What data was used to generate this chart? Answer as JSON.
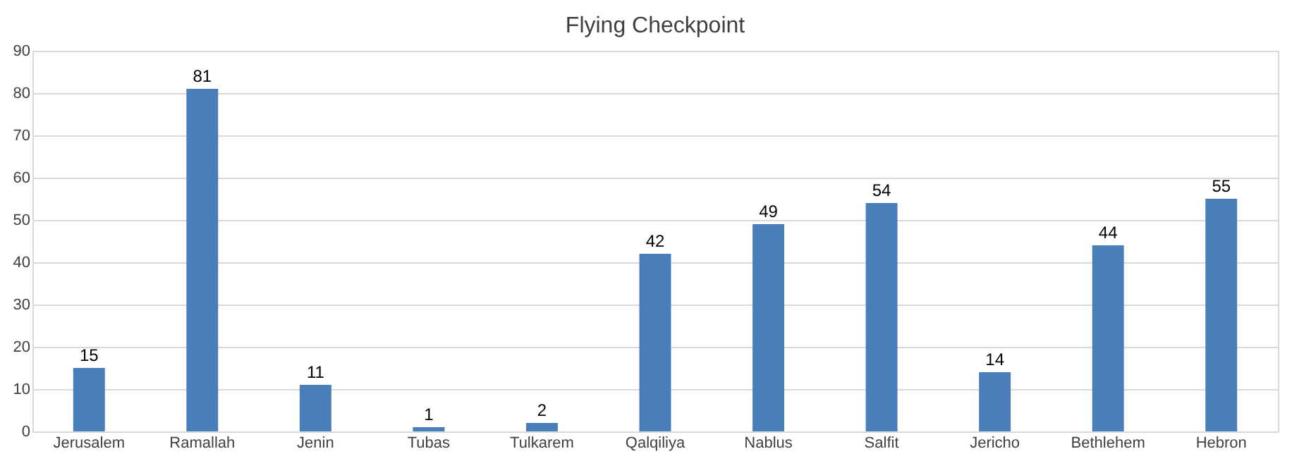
{
  "chart_data": {
    "type": "bar",
    "title": "Flying Checkpoint",
    "categories": [
      "Jerusalem",
      "Ramallah",
      "Jenin",
      "Tubas",
      "Tulkarem",
      "Qalqiliya",
      "Nablus",
      "Salfit",
      "Jericho",
      "Bethlehem",
      "Hebron"
    ],
    "values": [
      15,
      81,
      11,
      1,
      2,
      42,
      49,
      54,
      14,
      44,
      55
    ],
    "color": "#4a7ebb",
    "ylim": [
      0,
      90
    ],
    "yticks": [
      0,
      10,
      20,
      30,
      40,
      50,
      60,
      70,
      80,
      90
    ],
    "grid": "y",
    "data_labels": true
  }
}
